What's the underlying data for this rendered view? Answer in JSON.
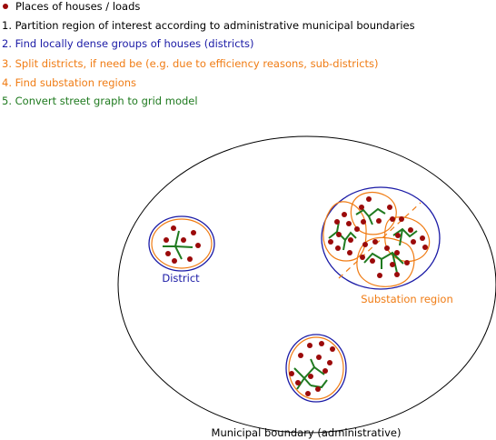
{
  "legend": {
    "loads_label": "Places of houses / loads",
    "step1": "1. Partition region of interest according to administrative municipal boundaries",
    "step2": "2. Find locally dense groups of houses (districts)",
    "step3": "3. Split districts, if need be (e.g. due to efficiency reasons, sub-districts)",
    "step4": "4. Find substation regions",
    "step5": "5. Convert street graph to grid model"
  },
  "labels": {
    "district": "District",
    "substation_region": "Substation region",
    "municipal_boundary": "Municipal boundary (administrative)"
  },
  "colors": {
    "house": "#9b0a0a",
    "district": "#1a1aa6",
    "sub_district": "#f07c14",
    "street": "#1f7a1f",
    "boundary": "#000000",
    "text": "#000000"
  },
  "icons": {
    "house": "filled-circle-dot"
  }
}
